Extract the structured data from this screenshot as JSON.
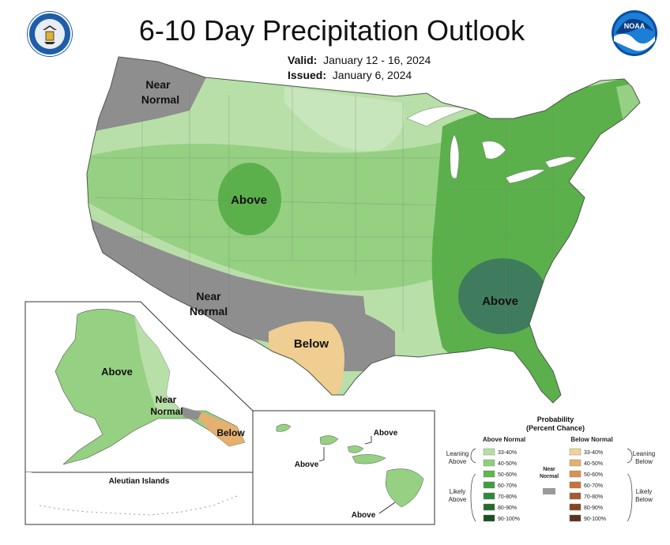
{
  "title": "6-10 Day Precipitation Outlook",
  "valid_label": "Valid:",
  "valid_value": "January 12 - 16, 2024",
  "issued_label": "Issued:",
  "issued_value": "January 6, 2024",
  "logos": {
    "left": "commerce-seal-icon",
    "right": "noaa-icon",
    "noaa_text": "NOAA"
  },
  "map_labels": {
    "near_normal_nw": [
      "Near",
      "Normal"
    ],
    "above_rockies": "Above",
    "near_normal_sw": [
      "Near",
      "Normal"
    ],
    "below_texas": "Below",
    "above_southeast": "Above",
    "alaska_above": "Above",
    "alaska_near_normal": [
      "Near",
      "Normal"
    ],
    "alaska_below": "Below",
    "aleutian": "Aleutian Islands",
    "hawaii_above_1": "Above",
    "hawaii_above_2": "Above",
    "hawaii_above_3": "Above"
  },
  "legend": {
    "title": [
      "Probability",
      "(Percent Chance)"
    ],
    "above_header": "Above Normal",
    "below_header": "Below Normal",
    "near_normal": [
      "Near",
      "Normal"
    ],
    "leaning_above": [
      "Leaning",
      "Above"
    ],
    "likely_above": [
      "Likely",
      "Above"
    ],
    "leaning_below": [
      "Leaning",
      "Below"
    ],
    "likely_below": [
      "Likely",
      "Below"
    ],
    "ranges": [
      "33-40%",
      "40-50%",
      "50-60%",
      "60-70%",
      "70-80%",
      "80-90%",
      "90-100%"
    ],
    "above_colors": [
      "#b5dfa6",
      "#8fce7d",
      "#5fb74f",
      "#3f9e3f",
      "#2e8a3a",
      "#236b2e",
      "#1a4f23"
    ],
    "below_colors": [
      "#f1d39a",
      "#e5b070",
      "#d9924e",
      "#c4733a",
      "#a85a2e",
      "#874524",
      "#5e311b"
    ],
    "near_color": "#9a9a9a"
  },
  "colors": {
    "near_normal": "#8e8e8e",
    "leaning_above_light": "#b9dfa9",
    "leaning_above": "#96d083",
    "above_50": "#5cb04c",
    "above_60": "#3a9a42",
    "above_70": "#3f7b5d",
    "below_33": "#f0cd91"
  }
}
